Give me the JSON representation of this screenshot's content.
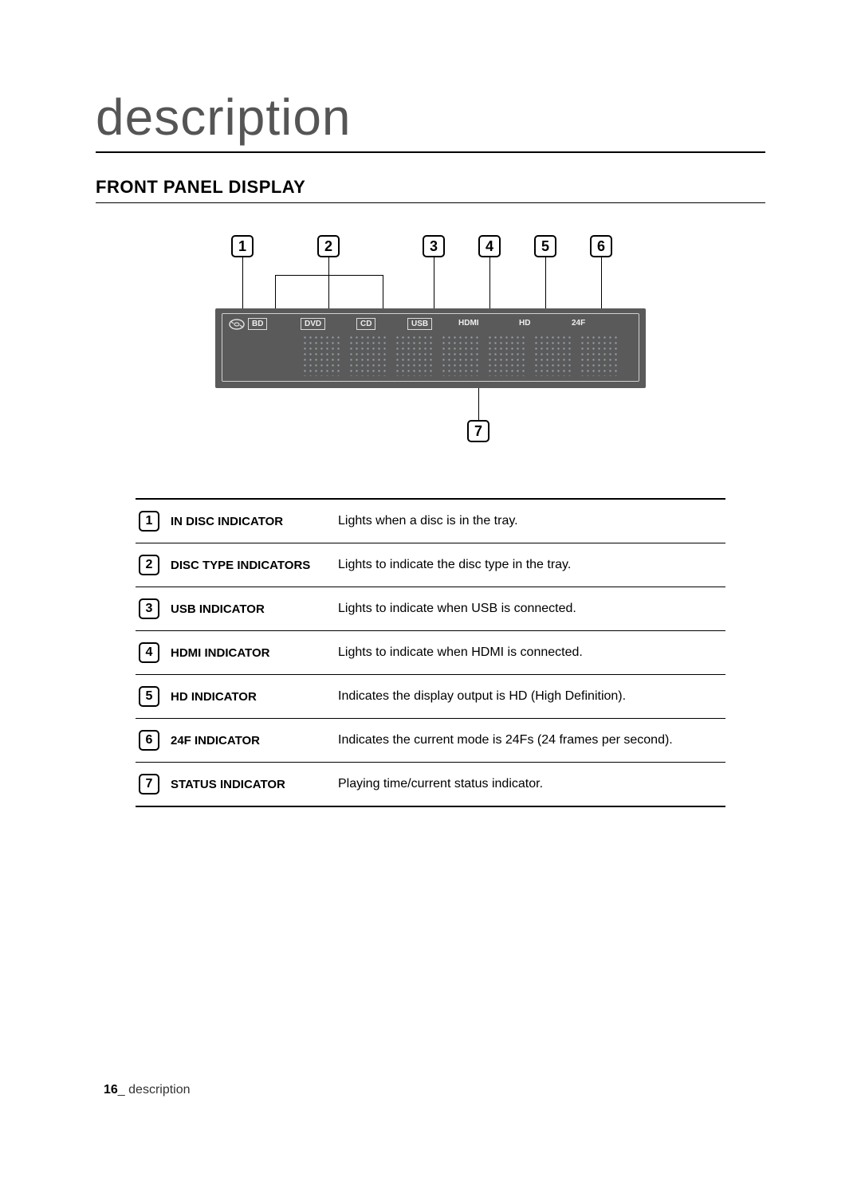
{
  "title": "description",
  "subtitle": "FRONT PANEL DISPLAY",
  "panel": {
    "indicators_boxed": [
      "BD",
      "DVD",
      "CD",
      "USB"
    ],
    "indicators_plain": [
      "HDMI",
      "HD",
      "24F"
    ]
  },
  "callouts": [
    "1",
    "2",
    "3",
    "4",
    "5",
    "6",
    "7"
  ],
  "table": [
    {
      "num": "1",
      "name": "IN DISC INDICATOR",
      "desc": "Lights when a disc is in the tray."
    },
    {
      "num": "2",
      "name": "DISC TYPE INDICATORS",
      "desc": "Lights to indicate the disc type in the tray."
    },
    {
      "num": "3",
      "name": "USB INDICATOR",
      "desc": "Lights to indicate when USB is connected."
    },
    {
      "num": "4",
      "name": "HDMI INDICATOR",
      "desc": "Lights to indicate when HDMI is connected."
    },
    {
      "num": "5",
      "name": "HD INDICATOR",
      "desc": "Indicates the display output is HD (High Definition)."
    },
    {
      "num": "6",
      "name": "24F INDICATOR",
      "desc": "Indicates the current mode is 24Fs (24 frames per second)."
    },
    {
      "num": "7",
      "name": "STATUS INDICATOR",
      "desc": "Playing time/current status indicator."
    }
  ],
  "footer": {
    "page": "16",
    "sep": "_",
    "label": " description"
  }
}
